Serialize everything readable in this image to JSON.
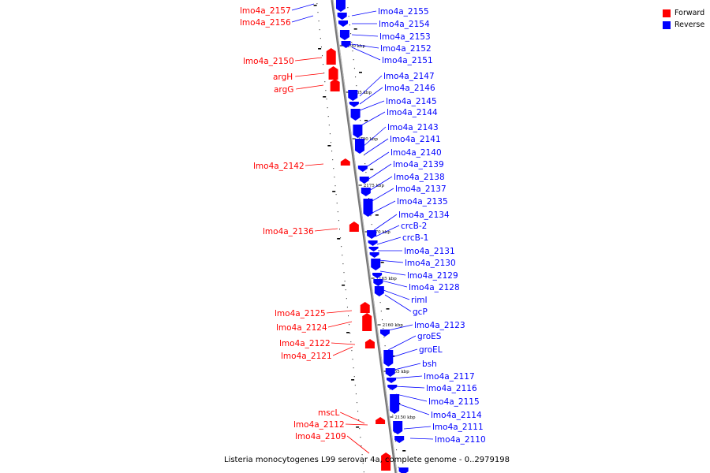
{
  "legend": {
    "forward_label": "Forward",
    "reverse_label": "Reverse",
    "forward_color": "#ff0000",
    "reverse_color": "#0000ff"
  },
  "caption": "Listeria monocytogenes L99 serovar 4a, complete genome - 0..2979198",
  "kbp_ticks": [
    "2190 kbp",
    "2185 kbp",
    "2180 kbp",
    "2175 kbp",
    "2170 kbp",
    "2165 kbp",
    "2160 kbp",
    "2155 kbp",
    "2150 kbp"
  ],
  "forward_genes": [
    "lmo4a_2157",
    "lmo4a_2156",
    "lmo4a_2150",
    "argH",
    "argG",
    "lmo4a_2142",
    "lmo4a_2136",
    "lmo4a_2125",
    "lmo4a_2124",
    "lmo4a_2122",
    "lmo4a_2121",
    "mscL",
    "lmo4a_2112",
    "lmo4a_2109"
  ],
  "reverse_genes": [
    "lmo4a_2155",
    "lmo4a_2154",
    "lmo4a_2153",
    "lmo4a_2152",
    "lmo4a_2151",
    "lmo4a_2147",
    "lmo4a_2146",
    "lmo4a_2145",
    "lmo4a_2144",
    "lmo4a_2143",
    "lmo4a_2141",
    "lmo4a_2140",
    "lmo4a_2139",
    "lmo4a_2138",
    "lmo4a_2137",
    "lmo4a_2135",
    "lmo4a_2134",
    "crcB-2",
    "crcB-1",
    "lmo4a_2131",
    "lmo4a_2130",
    "lmo4a_2129",
    "lmo4a_2128",
    "rimI",
    "gcP",
    "lmo4a_2123",
    "groES",
    "groEL",
    "bsh",
    "lmo4a_2117",
    "lmo4a_2116",
    "lmo4a_2115",
    "lmo4a_2114",
    "lmo4a_2111",
    "lmo4a_2110"
  ]
}
